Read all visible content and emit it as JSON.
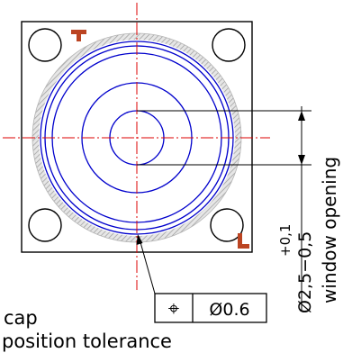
{
  "colors": {
    "outline": "#000000",
    "circles": "#0000cc",
    "centerline": "#dd0000",
    "gasket": "#b4b4b4",
    "marker": "#bb4422"
  },
  "tolerance_frame": {
    "symbol": "⌖",
    "value": "Ø0.6"
  },
  "labels": {
    "cap": "cap",
    "position_tolerance": "position tolerance",
    "tolerance_upper": "+0,1",
    "dimension": "Ø2,5−0,5",
    "window_opening": "window opening"
  },
  "markers": {
    "top": "T-marker-icon",
    "bottom": "L-marker-icon"
  }
}
